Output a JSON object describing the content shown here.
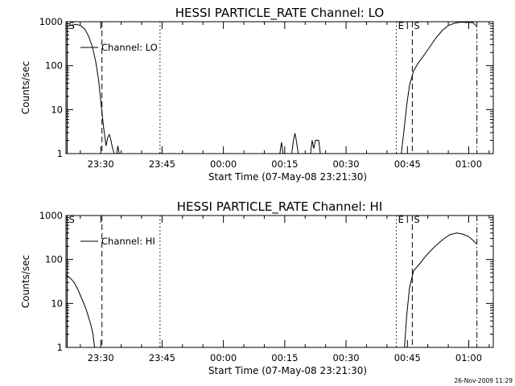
{
  "page": {
    "timestamp": "26-Nov-2009 11:29"
  },
  "chart_data": [
    {
      "type": "line",
      "title": "HESSI PARTICLE_RATE Channel: LO",
      "xlabel": "Start Time (07-May-08 23:21:30)",
      "ylabel": "Counts/sec",
      "legend": {
        "label": "Channel: LO",
        "placement": "top-left"
      },
      "x_unit": "minutes since 23:21:30",
      "xlim": [
        0,
        104.5
      ],
      "ylim": [
        1,
        1000
      ],
      "yscale": "log",
      "xticks": [
        {
          "label": "23:30",
          "value": 8.5
        },
        {
          "label": "23:45",
          "value": 23.5
        },
        {
          "label": "00:00",
          "value": 38.5
        },
        {
          "label": "00:15",
          "value": 53.5
        },
        {
          "label": "00:30",
          "value": 68.5
        },
        {
          "label": "00:45",
          "value": 83.5
        },
        {
          "label": "01:00",
          "value": 98.5
        }
      ],
      "yticks": [
        {
          "label": "1",
          "value": 1
        },
        {
          "label": "10",
          "value": 10
        },
        {
          "label": "100",
          "value": 100
        },
        {
          "label": "1000",
          "value": 1000
        }
      ],
      "markers": [
        {
          "label": "S",
          "x": 0.3,
          "style": "solid"
        },
        {
          "label": "",
          "x": 8.8,
          "style": "dashed"
        },
        {
          "label": "",
          "x": 23.0,
          "style": "dotted"
        },
        {
          "label": "E",
          "x": 80.8,
          "style": "dotted"
        },
        {
          "label": "S",
          "x": 84.7,
          "style": "dashed"
        },
        {
          "label": "",
          "x": 100.5,
          "style": "dashdot"
        }
      ],
      "series": [
        {
          "name": "Channel: LO",
          "segments": [
            [
              [
                0.0,
                780
              ],
              [
                1.0,
                820
              ],
              [
                2.5,
                870
              ],
              [
                3.5,
                820
              ],
              [
                4.5,
                700
              ],
              [
                5.5,
                480
              ],
              [
                6.5,
                260
              ],
              [
                7.3,
                120
              ],
              [
                8.0,
                45
              ],
              [
                8.6,
                13
              ],
              [
                9.2,
                4
              ],
              [
                9.8,
                1.5
              ],
              [
                10.2,
                2.3
              ],
              [
                10.6,
                2.7
              ],
              [
                11.0,
                2.0
              ],
              [
                11.4,
                1.3
              ],
              [
                11.8,
                1.0
              ]
            ],
            [
              [
                12.4,
                1.0
              ],
              [
                12.7,
                1.5
              ],
              [
                13.0,
                1.0
              ]
            ],
            [
              [
                52.3,
                1.0
              ],
              [
                52.7,
                1.8
              ],
              [
                53.1,
                1.0
              ]
            ],
            [
              [
                55.2,
                1.0
              ],
              [
                55.7,
                2.2
              ],
              [
                56.0,
                2.9
              ],
              [
                56.4,
                1.8
              ],
              [
                56.8,
                1.0
              ]
            ],
            [
              [
                59.8,
                1.0
              ],
              [
                60.2,
                2.0
              ],
              [
                60.6,
                1.3
              ],
              [
                61.0,
                2.0
              ],
              [
                61.8,
                2.0
              ],
              [
                62.2,
                1.0
              ]
            ],
            [
              [
                82.0,
                1.0
              ],
              [
                82.6,
                3
              ],
              [
                83.3,
                12
              ],
              [
                84.0,
                35
              ],
              [
                85.0,
                75
              ],
              [
                86.0,
                110
              ],
              [
                87.5,
                170
              ],
              [
                89.0,
                270
              ],
              [
                90.5,
                430
              ],
              [
                92.0,
                630
              ],
              [
                93.5,
                820
              ],
              [
                95.0,
                920
              ],
              [
                96.5,
                980
              ],
              [
                98.0,
                960
              ],
              [
                99.5,
                960
              ],
              [
                100.3,
                800
              ]
            ]
          ]
        }
      ]
    },
    {
      "type": "line",
      "title": "HESSI PARTICLE_RATE Channel: HI",
      "xlabel": "Start Time (07-May-08 23:21:30)",
      "ylabel": "Counts/sec",
      "legend": {
        "label": "Channel: HI",
        "placement": "top-left"
      },
      "x_unit": "minutes since 23:21:30",
      "xlim": [
        0,
        104.5
      ],
      "ylim": [
        1,
        1000
      ],
      "yscale": "log",
      "xticks": [
        {
          "label": "23:30",
          "value": 8.5
        },
        {
          "label": "23:45",
          "value": 23.5
        },
        {
          "label": "00:00",
          "value": 38.5
        },
        {
          "label": "00:15",
          "value": 53.5
        },
        {
          "label": "00:30",
          "value": 68.5
        },
        {
          "label": "00:45",
          "value": 83.5
        },
        {
          "label": "01:00",
          "value": 98.5
        }
      ],
      "yticks": [
        {
          "label": "1",
          "value": 1
        },
        {
          "label": "10",
          "value": 10
        },
        {
          "label": "100",
          "value": 100
        },
        {
          "label": "1000",
          "value": 1000
        }
      ],
      "markers": [
        {
          "label": "S",
          "x": 0.3,
          "style": "solid"
        },
        {
          "label": "",
          "x": 8.8,
          "style": "dashed"
        },
        {
          "label": "",
          "x": 23.0,
          "style": "dotted"
        },
        {
          "label": "E",
          "x": 80.8,
          "style": "dotted"
        },
        {
          "label": "S",
          "x": 84.7,
          "style": "dashed"
        },
        {
          "label": "",
          "x": 100.5,
          "style": "dashdot"
        }
      ],
      "series": [
        {
          "name": "Channel: HI",
          "segments": [
            [
              [
                0.0,
                45
              ],
              [
                1.0,
                38
              ],
              [
                2.0,
                30
              ],
              [
                3.0,
                20
              ],
              [
                4.0,
                12
              ],
              [
                5.0,
                7
              ],
              [
                6.0,
                3.5
              ],
              [
                6.6,
                2.0
              ],
              [
                7.0,
                1.0
              ]
            ],
            [
              [
                82.8,
                1.0
              ],
              [
                83.3,
                5
              ],
              [
                84.0,
                22
              ],
              [
                85.0,
                55
              ],
              [
                86.5,
                80
              ],
              [
                88.0,
                120
              ],
              [
                89.5,
                170
              ],
              [
                91.0,
                230
              ],
              [
                92.5,
                300
              ],
              [
                94.0,
                370
              ],
              [
                95.5,
                400
              ],
              [
                97.0,
                380
              ],
              [
                98.5,
                330
              ],
              [
                99.8,
                260
              ],
              [
                100.3,
                230
              ]
            ]
          ]
        }
      ]
    }
  ]
}
